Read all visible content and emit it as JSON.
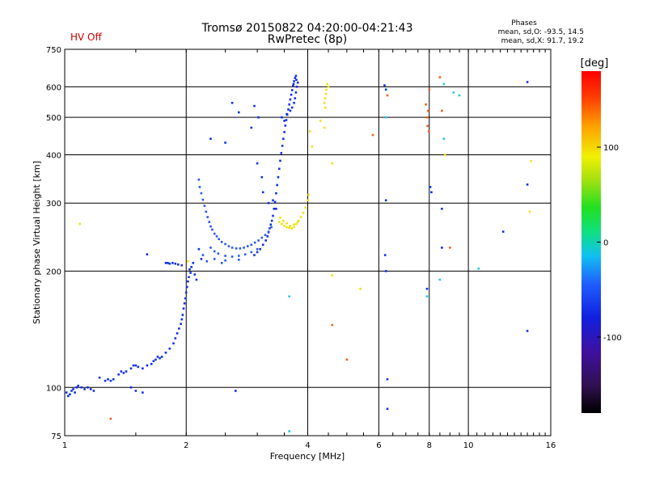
{
  "chart_data": {
    "type": "scatter",
    "title": "Tromsø 20150822 04:20:00-04:21:43",
    "subtitle": "RwPretec (8p)",
    "status_label": "HV Off",
    "status_color": "#cc0000",
    "stats": {
      "heading": "Phases",
      "line1": "mean, sd,O: -93.5, 14.5",
      "line2": "mean, sd,X:  91.7, 19.2"
    },
    "xlabel": "Frequency [MHz]",
    "ylabel": "Stationary phase Virtual Height [km]",
    "x_scale": "log2",
    "y_scale": "log",
    "xlim": [
      1,
      16
    ],
    "ylim": [
      75,
      750
    ],
    "x_ticks": [
      1,
      2,
      4,
      6,
      8,
      10,
      16
    ],
    "x_tick_labels": [
      "1",
      "2",
      "4",
      "6",
      "8",
      "10",
      "16"
    ],
    "y_ticks": [
      75,
      100,
      200,
      300,
      400,
      500,
      600,
      750
    ],
    "y_tick_labels": [
      "75",
      "100",
      "200",
      "300",
      "400",
      "500",
      "600",
      "750"
    ],
    "grid": true,
    "colorbar": {
      "label": "[deg]",
      "range": [
        -180,
        180
      ],
      "ticks": [
        -100,
        0,
        100
      ],
      "tick_labels": [
        "-100",
        "0",
        "100"
      ]
    },
    "series": [
      {
        "color": "#1030e8",
        "points": [
          [
            1.01,
            97
          ],
          [
            1.02,
            95
          ],
          [
            1.03,
            96
          ],
          [
            1.04,
            98
          ],
          [
            1.05,
            99
          ],
          [
            1.06,
            97
          ],
          [
            1.07,
            100
          ],
          [
            1.08,
            101
          ],
          [
            1.1,
            100
          ],
          [
            1.12,
            99
          ],
          [
            1.14,
            100
          ],
          [
            1.16,
            99
          ],
          [
            1.18,
            98
          ],
          [
            1.26,
            104
          ],
          [
            1.28,
            105
          ],
          [
            1.3,
            104
          ],
          [
            1.32,
            105
          ],
          [
            1.36,
            108
          ],
          [
            1.38,
            110
          ],
          [
            1.4,
            109
          ],
          [
            1.42,
            110
          ],
          [
            1.46,
            112
          ],
          [
            1.48,
            114
          ],
          [
            1.5,
            114
          ],
          [
            1.52,
            113
          ],
          [
            1.56,
            112
          ],
          [
            1.6,
            114
          ],
          [
            1.64,
            115
          ],
          [
            1.66,
            117
          ],
          [
            1.68,
            118
          ],
          [
            1.7,
            120
          ],
          [
            1.72,
            119
          ],
          [
            1.74,
            120
          ],
          [
            1.78,
            123
          ],
          [
            1.82,
            126
          ],
          [
            1.86,
            130
          ],
          [
            1.88,
            134
          ],
          [
            1.9,
            138
          ],
          [
            1.92,
            142
          ],
          [
            1.94,
            146
          ],
          [
            1.95,
            150
          ],
          [
            1.96,
            154
          ],
          [
            1.97,
            160
          ],
          [
            1.98,
            165
          ],
          [
            1.99,
            170
          ],
          [
            2.0,
            176
          ],
          [
            2.01,
            182
          ],
          [
            2.02,
            188
          ],
          [
            2.03,
            193
          ],
          [
            2.05,
            198
          ],
          [
            1.78,
            210
          ],
          [
            1.8,
            210
          ],
          [
            1.82,
            209
          ],
          [
            1.85,
            210
          ],
          [
            1.88,
            209
          ],
          [
            1.91,
            208
          ],
          [
            1.95,
            207
          ],
          [
            2.06,
            205
          ],
          [
            2.08,
            210
          ],
          [
            2.04,
            202
          ],
          [
            2.1,
            196
          ],
          [
            2.12,
            190
          ],
          [
            1.6,
            221
          ],
          [
            1.5,
            98
          ],
          [
            1.56,
            97
          ],
          [
            1.22,
            106
          ],
          [
            1.46,
            100
          ],
          [
            2.18,
            215
          ],
          [
            2.15,
            228
          ],
          [
            2.95,
            220
          ],
          [
            3.0,
            224
          ],
          [
            3.05,
            228
          ],
          [
            3.1,
            234
          ],
          [
            3.15,
            240
          ],
          [
            3.18,
            246
          ],
          [
            3.2,
            252
          ],
          [
            3.22,
            258
          ],
          [
            3.24,
            264
          ],
          [
            3.26,
            270
          ],
          [
            3.28,
            278
          ],
          [
            3.3,
            290
          ],
          [
            3.32,
            302
          ],
          [
            3.34,
            318
          ],
          [
            3.36,
            334
          ],
          [
            3.38,
            350
          ],
          [
            3.4,
            368
          ],
          [
            3.42,
            386
          ],
          [
            3.44,
            404
          ],
          [
            3.46,
            422
          ],
          [
            3.48,
            440
          ],
          [
            3.5,
            458
          ],
          [
            3.52,
            476
          ],
          [
            3.54,
            492
          ],
          [
            3.56,
            508
          ],
          [
            3.58,
            524
          ],
          [
            3.6,
            540
          ],
          [
            3.62,
            556
          ],
          [
            3.64,
            572
          ],
          [
            3.66,
            588
          ],
          [
            3.68,
            604
          ],
          [
            3.7,
            620
          ],
          [
            3.72,
            632
          ],
          [
            3.74,
            640
          ],
          [
            3.45,
            500
          ],
          [
            3.5,
            490
          ],
          [
            3.55,
            510
          ],
          [
            3.62,
            520
          ],
          [
            3.66,
            530
          ],
          [
            3.7,
            545
          ],
          [
            3.72,
            560
          ],
          [
            3.74,
            580
          ],
          [
            3.76,
            600
          ],
          [
            3.78,
            615
          ],
          [
            3.75,
            625
          ],
          [
            3.69,
            610
          ],
          [
            3.0,
            380
          ],
          [
            3.08,
            350
          ],
          [
            3.1,
            320
          ],
          [
            3.2,
            300
          ],
          [
            3.28,
            305
          ],
          [
            3.34,
            290
          ],
          [
            2.3,
            440
          ],
          [
            2.5,
            430
          ],
          [
            2.6,
            545
          ],
          [
            2.7,
            515
          ],
          [
            2.9,
            470
          ],
          [
            3.02,
            500
          ],
          [
            2.95,
            535
          ],
          [
            2.65,
            98
          ],
          [
            6.2,
            605
          ],
          [
            6.25,
            590
          ],
          [
            6.25,
            305
          ],
          [
            6.22,
            220
          ],
          [
            6.3,
            105
          ],
          [
            6.3,
            88
          ],
          [
            8.05,
            330
          ],
          [
            8.6,
            290
          ],
          [
            8.6,
            230
          ],
          [
            8.1,
            320
          ],
          [
            14,
            335
          ],
          [
            14,
            617
          ],
          [
            12.2,
            253
          ],
          [
            14,
            140
          ],
          [
            6.25,
            200
          ],
          [
            7.9,
            180
          ]
        ]
      },
      {
        "color": "#2858f0",
        "points": [
          [
            2.15,
            345
          ],
          [
            2.16,
            330
          ],
          [
            2.18,
            318
          ],
          [
            2.2,
            306
          ],
          [
            2.22,
            295
          ],
          [
            2.24,
            285
          ],
          [
            2.26,
            276
          ],
          [
            2.28,
            268
          ],
          [
            2.3,
            261
          ],
          [
            2.32,
            256
          ],
          [
            2.35,
            250
          ],
          [
            2.38,
            246
          ],
          [
            2.41,
            242
          ],
          [
            2.45,
            238
          ],
          [
            2.5,
            235
          ],
          [
            2.55,
            232
          ],
          [
            2.6,
            230
          ],
          [
            2.66,
            229
          ],
          [
            2.72,
            229
          ],
          [
            2.78,
            230
          ],
          [
            2.84,
            232
          ],
          [
            2.9,
            234
          ],
          [
            2.96,
            237
          ],
          [
            3.02,
            240
          ],
          [
            3.08,
            244
          ],
          [
            3.14,
            248
          ],
          [
            3.2,
            253
          ],
          [
            3.25,
            260
          ],
          [
            2.3,
            230
          ],
          [
            2.35,
            225
          ],
          [
            2.4,
            222
          ],
          [
            2.5,
            219
          ],
          [
            2.6,
            218
          ],
          [
            2.7,
            219
          ],
          [
            2.8,
            221
          ],
          [
            2.9,
            224
          ],
          [
            3.0,
            228
          ],
          [
            2.35,
            215
          ],
          [
            2.5,
            213
          ],
          [
            2.7,
            214
          ],
          [
            2.2,
            220
          ],
          [
            2.25,
            212
          ],
          [
            2.45,
            210
          ]
        ]
      },
      {
        "color": "#f2e010",
        "points": [
          [
            3.4,
            268
          ],
          [
            3.45,
            265
          ],
          [
            3.5,
            262
          ],
          [
            3.55,
            260
          ],
          [
            3.6,
            259
          ],
          [
            3.65,
            258
          ],
          [
            3.7,
            260
          ],
          [
            3.75,
            265
          ],
          [
            3.8,
            270
          ],
          [
            3.85,
            276
          ],
          [
            3.9,
            283
          ],
          [
            3.95,
            292
          ],
          [
            4.0,
            305
          ],
          [
            4.02,
            315
          ],
          [
            3.42,
            275
          ],
          [
            3.48,
            270
          ],
          [
            3.55,
            266
          ],
          [
            3.62,
            262
          ],
          [
            3.7,
            264
          ],
          [
            3.78,
            268
          ],
          [
            4.4,
            545
          ],
          [
            4.42,
            560
          ],
          [
            4.44,
            575
          ],
          [
            4.45,
            590
          ],
          [
            4.47,
            610
          ],
          [
            4.5,
            600
          ],
          [
            4.42,
            530
          ],
          [
            4.4,
            470
          ],
          [
            4.3,
            490
          ],
          [
            4.6,
            380
          ],
          [
            4.1,
            420
          ],
          [
            4.05,
            460
          ],
          [
            4.6,
            195
          ],
          [
            5.4,
            180
          ],
          [
            1.09,
            265
          ],
          [
            2.02,
            212
          ],
          [
            8.75,
            400
          ],
          [
            14.3,
            385
          ],
          [
            14.2,
            285
          ]
        ]
      },
      {
        "color": "#f06020",
        "points": [
          [
            7.9,
            500
          ],
          [
            7.95,
            520
          ],
          [
            7.92,
            475
          ],
          [
            7.98,
            460
          ],
          [
            8.0,
            590
          ],
          [
            8.5,
            635
          ],
          [
            5.8,
            450
          ],
          [
            4.6,
            145
          ],
          [
            5.0,
            118
          ],
          [
            1.3,
            83
          ],
          [
            6.3,
            570
          ],
          [
            8.6,
            520
          ],
          [
            7.85,
            540
          ],
          [
            9.0,
            230
          ]
        ]
      },
      {
        "color": "#20c8e8",
        "points": [
          [
            6.25,
            500
          ],
          [
            8.7,
            610
          ],
          [
            9.5,
            570
          ],
          [
            9.2,
            580
          ],
          [
            10.6,
            203
          ],
          [
            7.9,
            172
          ],
          [
            8.5,
            190
          ],
          [
            3.6,
            172
          ],
          [
            3.6,
            77
          ],
          [
            8.7,
            440
          ]
        ]
      }
    ]
  }
}
